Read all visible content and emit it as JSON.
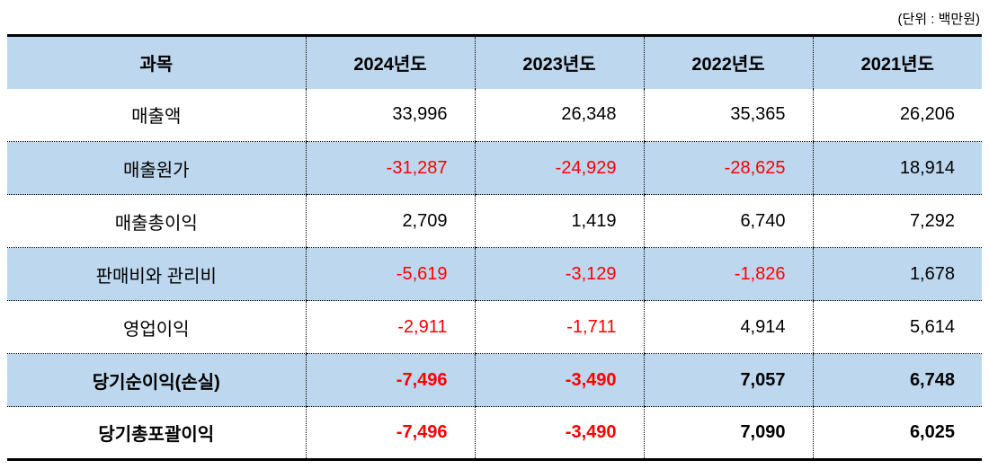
{
  "unit_label": "(단위 : 백만원)",
  "colors": {
    "header_bg": "#BDD7EE",
    "stripe_bg": "#BDD7EE",
    "negative_text": "#FF0000",
    "text": "#000000",
    "border": "#000000"
  },
  "table": {
    "columns": [
      "과목",
      "2024년도",
      "2023년도",
      "2022년도",
      "2021년도"
    ],
    "rows": [
      {
        "label": "매출액",
        "values": [
          "33,996",
          "26,348",
          "35,365",
          "26,206"
        ]
      },
      {
        "label": "매출원가",
        "values": [
          "-31,287",
          "-24,929",
          "-28,625",
          "18,914"
        ]
      },
      {
        "label": "매출총이익",
        "values": [
          "2,709",
          "1,419",
          "6,740",
          "7,292"
        ]
      },
      {
        "label": "판매비와 관리비",
        "values": [
          "-5,619",
          "-3,129",
          "-1,826",
          "1,678"
        ]
      },
      {
        "label": "영업이익",
        "values": [
          "-2,911",
          "-1,711",
          "4,914",
          "5,614"
        ]
      },
      {
        "label": "당기순이익(손실)",
        "values": [
          "-7,496",
          "-3,490",
          "7,057",
          "6,748"
        ]
      },
      {
        "label": "당기총포괄이익",
        "values": [
          "-7,496",
          "-3,490",
          "7,090",
          "6,025"
        ]
      }
    ]
  }
}
